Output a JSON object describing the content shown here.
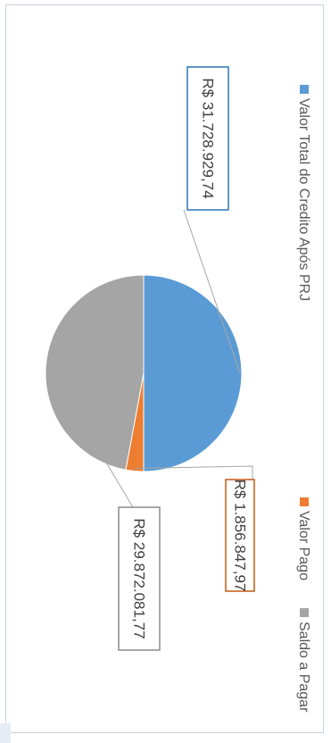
{
  "chart_data": {
    "type": "pie",
    "title": "",
    "slices": [
      {
        "name": "Valor Total do Credito Após PRJ",
        "value": 31728929.74,
        "label": "R$ 31.728.929,74",
        "color": "#5b9bd5",
        "box_color": "#2e75b6"
      },
      {
        "name": "Valor Pago",
        "value": 1856847.97,
        "label": "R$ 1.856.847,97",
        "color": "#ed7d31",
        "box_color": "#c55a11"
      },
      {
        "name": "Saldo a Pagar",
        "value": 29872081.77,
        "label": "R$ 29.872.081,77",
        "color": "#a5a5a5",
        "box_color": "#8c8c8c"
      }
    ],
    "legend": {
      "placement": "bottom",
      "entries": [
        "Valor Total do Credito Após PRJ",
        "Valor Pago",
        "Saldo a Pagar"
      ]
    },
    "orientation": "rotated 90° clockwise"
  }
}
